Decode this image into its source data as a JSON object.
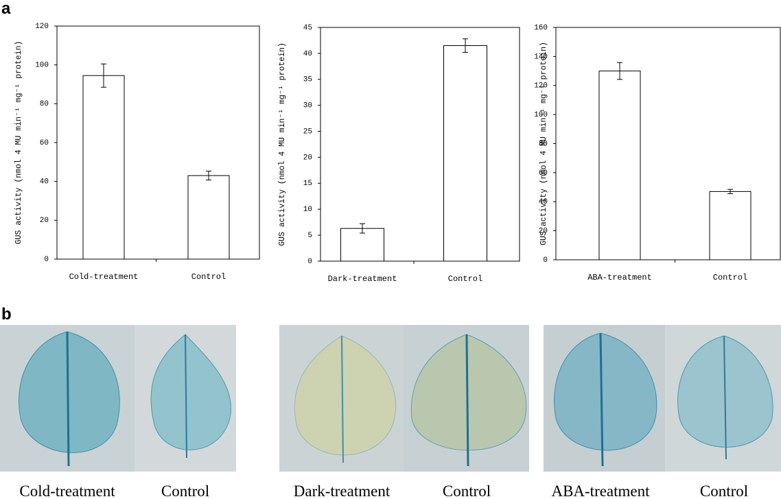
{
  "panel_a_label": "a",
  "panel_b_label": "b",
  "chart_data": [
    {
      "type": "bar",
      "ylabel": "GUS activity (nmol 4 MU min⁻¹ mg⁻¹ protein)",
      "categories": [
        "Cold-treatment",
        "Control"
      ],
      "values": [
        94.5,
        43
      ],
      "errors": [
        6,
        2.3
      ],
      "color": "#ffffff",
      "ylim": [
        0,
        120
      ],
      "yticks": [
        0,
        20,
        40,
        60,
        80,
        100,
        120
      ]
    },
    {
      "type": "bar",
      "ylabel": "GUS activity (nmol 4 MU min⁻¹ mg⁻¹ protein)",
      "categories": [
        "Dark-treatment",
        "Control"
      ],
      "values": [
        6.3,
        41.5
      ],
      "errors": [
        0.9,
        1.3
      ],
      "color": "#ffffff",
      "ylim": [
        0,
        45
      ],
      "yticks": [
        0,
        5,
        10,
        15,
        20,
        25,
        30,
        35,
        40,
        45
      ]
    },
    {
      "type": "bar",
      "ylabel": "GUS activity (nmol 4 MU min⁻¹ mg⁻¹ protein)",
      "categories": [
        "ABA-treatment",
        "Control"
      ],
      "values": [
        130,
        47
      ],
      "errors": [
        5.8,
        1.5
      ],
      "color": "#ffffff",
      "ylim": [
        0,
        160
      ],
      "yticks": [
        0,
        20,
        40,
        60,
        80,
        100,
        120,
        140,
        160
      ]
    }
  ],
  "photo_captions": [
    "Cold-treatment",
    "Control",
    "Dark-treatment",
    "Control",
    "ABA-treatment",
    "Control"
  ]
}
